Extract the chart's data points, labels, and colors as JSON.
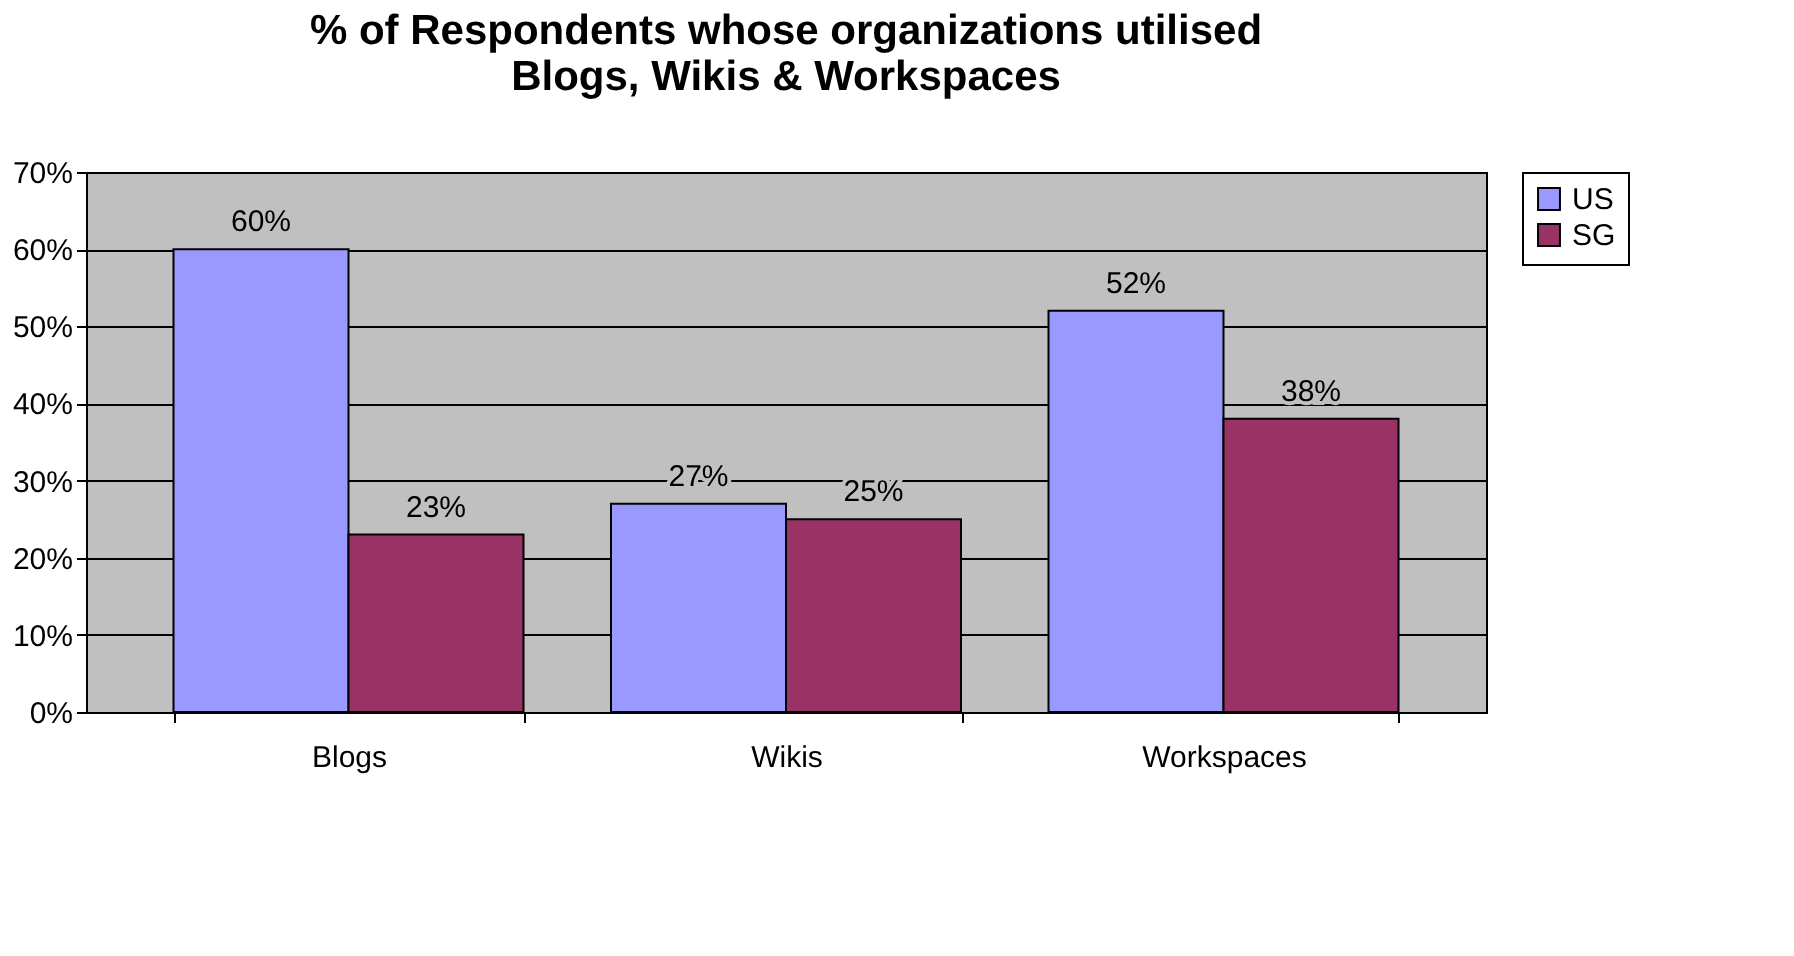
{
  "chart_data": {
    "type": "bar",
    "title": [
      "% of Respondents whose organizations utilised",
      "Blogs, Wikis & Workspaces"
    ],
    "categories": [
      "Blogs",
      "Wikis",
      "Workspaces"
    ],
    "series": [
      {
        "name": "US",
        "color": "#9999ff",
        "values": [
          60,
          27,
          52
        ],
        "value_labels": [
          "60%",
          "27%",
          "52%"
        ]
      },
      {
        "name": "SG",
        "color": "#993366",
        "values": [
          23,
          25,
          38
        ],
        "value_labels": [
          "23%",
          "25%",
          "38%"
        ]
      }
    ],
    "ylim": [
      0,
      70
    ],
    "yticks": [
      {
        "value": 0,
        "label": "0%"
      },
      {
        "value": 10,
        "label": "10%"
      },
      {
        "value": 20,
        "label": "20%"
      },
      {
        "value": 30,
        "label": "30%"
      },
      {
        "value": 40,
        "label": "40%"
      },
      {
        "value": 50,
        "label": "50%"
      },
      {
        "value": 60,
        "label": "60%"
      },
      {
        "value": 70,
        "label": "70%"
      }
    ],
    "grid": "y",
    "legend": "right"
  }
}
